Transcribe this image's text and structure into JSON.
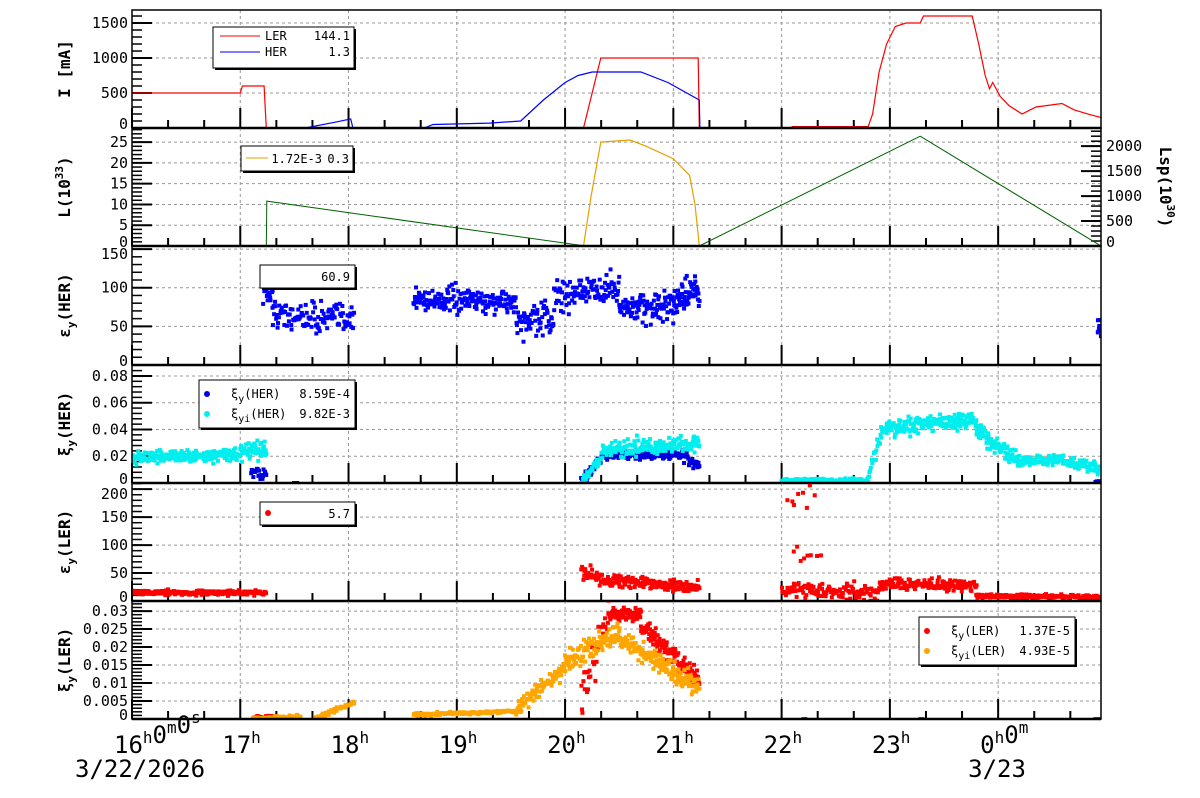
{
  "chart_data": [
    {
      "type": "line",
      "ylabel": "I [mA]",
      "ylabel_parts": [
        "I [mA]"
      ],
      "xunit": "hours since 16:00 3/22/2026",
      "ylim": [
        0,
        1686
      ],
      "yticks": [
        0,
        500,
        1000,
        1500
      ],
      "ytick_labels": [
        "0",
        "500",
        "1000",
        "1500"
      ],
      "series": [
        {
          "name": "LER",
          "color": "#ff0000",
          "legend_value": "144.1",
          "points": [
            [
              0,
              500
            ],
            [
              1.0,
              500
            ],
            [
              1.02,
              600
            ],
            [
              1.22,
              600
            ],
            [
              1.23,
              290
            ],
            [
              1.24,
              0
            ],
            [
              4.17,
              0
            ],
            [
              4.33,
              1000
            ],
            [
              5.23,
              1000
            ],
            [
              5.24,
              0
            ],
            [
              6.08,
              0
            ],
            [
              6.1,
              20
            ],
            [
              6.8,
              20
            ],
            [
              6.84,
              200
            ],
            [
              6.9,
              800
            ],
            [
              6.97,
              1200
            ],
            [
              7.05,
              1450
            ],
            [
              7.15,
              1500
            ],
            [
              7.28,
              1500
            ],
            [
              7.31,
              1600
            ],
            [
              7.76,
              1600
            ],
            [
              7.82,
              1200
            ],
            [
              7.88,
              750
            ],
            [
              7.92,
              560
            ],
            [
              7.95,
              650
            ],
            [
              8.02,
              450
            ],
            [
              8.1,
              320
            ],
            [
              8.22,
              200
            ],
            [
              8.35,
              300
            ],
            [
              8.59,
              350
            ],
            [
              8.7,
              260
            ],
            [
              8.85,
              190
            ],
            [
              8.95,
              150
            ]
          ]
        },
        {
          "name": "HER",
          "color": "#0000ff",
          "legend_value": "1.3",
          "points": [
            [
              0,
              0
            ],
            [
              1.6,
              0
            ],
            [
              1.9,
              90
            ],
            [
              2.02,
              130
            ],
            [
              2.04,
              0
            ],
            [
              2.7,
              0
            ],
            [
              2.78,
              50
            ],
            [
              3.3,
              70
            ],
            [
              3.59,
              100
            ],
            [
              3.8,
              400
            ],
            [
              4.0,
              650
            ],
            [
              4.12,
              750
            ],
            [
              4.25,
              800
            ],
            [
              4.7,
              800
            ],
            [
              4.95,
              650
            ],
            [
              5.24,
              400
            ],
            [
              5.245,
              0
            ],
            [
              8.95,
              0
            ]
          ]
        }
      ]
    },
    {
      "type": "line",
      "ylabel": "L(10^33)",
      "ylabel_parts": [
        "L(10",
        "33",
        ")"
      ],
      "ylabel_right_parts": [
        "Lsp(10",
        "30",
        ")"
      ],
      "ylim": [
        0,
        28.4
      ],
      "ylim_right": [
        0,
        2364
      ],
      "yticks": [
        0,
        5,
        10,
        15,
        20,
        25
      ],
      "ytick_labels": [
        "0",
        "5",
        "10",
        "15",
        "20",
        "25"
      ],
      "yticks_right": [
        0,
        500,
        1000,
        1500,
        2000
      ],
      "ytick_labels_right": [
        "0",
        "500",
        "1000",
        "1500",
        "2000"
      ],
      "legend_value": "1.72E-3",
      "legend_value_overlap": "0.3",
      "series": [
        {
          "name": "L",
          "axis": "left",
          "color": "#e6a000",
          "points": [
            [
              0,
              0
            ],
            [
              4.17,
              0
            ],
            [
              4.24,
              12
            ],
            [
              4.33,
              25
            ],
            [
              4.6,
              25.5
            ],
            [
              4.75,
              24
            ],
            [
              5.0,
              21
            ],
            [
              5.15,
              17
            ],
            [
              5.2,
              10
            ],
            [
              5.24,
              0
            ],
            [
              8.95,
              0
            ]
          ]
        },
        {
          "name": "Lsp",
          "axis": "right",
          "color": "#006400",
          "points": [
            [
              1.1,
              0
            ],
            [
              1.24,
              0
            ],
            [
              1.245,
              900
            ],
            [
              4.19,
              0
            ],
            [
              5.24,
              0
            ],
            [
              7.28,
              2200
            ],
            [
              8.95,
              0
            ]
          ]
        }
      ]
    },
    {
      "type": "scatter",
      "ylabel": "εy(HER)",
      "ylabel_parts": [
        "ε",
        "y",
        "(HER)"
      ],
      "ylim": [
        0,
        154
      ],
      "yticks": [
        0,
        50,
        100,
        150
      ],
      "ytick_labels": [
        "0",
        "50",
        "100",
        "150"
      ],
      "legend_value": "60.9",
      "series": [
        {
          "name": "εy(HER)",
          "color": "#0000ff",
          "segments": [
            [
              1.2,
              1.3,
              105,
              95,
              12,
              25
            ],
            [
              1.3,
              2.05,
              65,
              60,
              10,
              120
            ],
            [
              2.6,
              3.55,
              85,
              82,
              8,
              170
            ],
            [
              3.55,
              3.9,
              55,
              60,
              10,
              60
            ],
            [
              3.9,
              4.5,
              90,
              100,
              10,
              100
            ],
            [
              4.5,
              5.0,
              75,
              72,
              10,
              100
            ],
            [
              5.0,
              5.24,
              85,
              95,
              12,
              60
            ],
            [
              8.92,
              8.95,
              50,
              50,
              10,
              10
            ]
          ]
        }
      ]
    },
    {
      "type": "scatter",
      "ylabel": "ξy(HER)",
      "ylabel_parts": [
        "ξ",
        "y",
        "(HER)"
      ],
      "ylim": [
        0,
        0.0882
      ],
      "yticks": [
        0,
        0.02,
        0.04,
        0.06,
        0.08
      ],
      "ytick_labels": [
        "0",
        "0.02",
        "0.04",
        "0.06",
        "0.08"
      ],
      "series": [
        {
          "name": "ξy(HER)",
          "label_main": "ξ",
          "label_sub": "y",
          "label_rest": "(HER)",
          "legend_value": "8.59E-4",
          "color": "#0000dd",
          "segments": [
            [
              1.1,
              1.24,
              0.007,
              0.007,
              0.002,
              20
            ],
            [
              1.5,
              1.52,
              0,
              0,
              0,
              2
            ],
            [
              4.15,
              4.35,
              0.0,
              0.02,
              0.002,
              30
            ],
            [
              4.35,
              5.1,
              0.021,
              0.021,
              0.0015,
              150
            ],
            [
              5.1,
              5.24,
              0.02,
              0.012,
              0.002,
              30
            ],
            [
              8.9,
              8.95,
              0.001,
              0.001,
              0.0005,
              8
            ]
          ]
        },
        {
          "name": "ξyi(HER)",
          "label_main": "ξ",
          "label_sub": "yi",
          "label_rest": "(HER)",
          "legend_value": "9.82E-3",
          "color": "#00eeee",
          "segments": [
            [
              0,
              1.0,
              0.019,
              0.021,
              0.002,
              200
            ],
            [
              1.0,
              1.24,
              0.023,
              0.025,
              0.003,
              50
            ],
            [
              4.15,
              4.35,
              0.0,
              0.022,
              0.002,
              30
            ],
            [
              4.35,
              5.24,
              0.025,
              0.029,
              0.003,
              180
            ],
            [
              6.0,
              6.8,
              0.002,
              0.002,
              0.0007,
              100
            ],
            [
              6.8,
              6.92,
              0.005,
              0.038,
              0.003,
              20
            ],
            [
              6.92,
              7.8,
              0.04,
              0.048,
              0.003,
              180
            ],
            [
              7.8,
              8.2,
              0.04,
              0.015,
              0.003,
              80
            ],
            [
              8.2,
              8.6,
              0.016,
              0.018,
              0.002,
              80
            ],
            [
              8.6,
              8.95,
              0.016,
              0.01,
              0.002,
              70
            ]
          ]
        }
      ]
    },
    {
      "type": "scatter",
      "ylabel": "εy(LER)",
      "ylabel_parts": [
        "ε",
        "y",
        "(LER)"
      ],
      "ylim": [
        0,
        211
      ],
      "yticks": [
        0,
        50,
        100,
        150,
        200
      ],
      "ytick_labels": [
        "0",
        "50",
        "100",
        "150",
        "200"
      ],
      "legend_value": "5.7",
      "series": [
        {
          "name": "εy(LER)",
          "color": "#ff0000",
          "segments": [
            [
              0,
              1.24,
              15,
              15,
              2,
              200
            ],
            [
              4.15,
              4.25,
              55,
              50,
              8,
              20
            ],
            [
              4.25,
              5.24,
              40,
              25,
              5,
              180
            ],
            [
              6.0,
              6.9,
              18,
              15,
              8,
              120
            ],
            [
              6.9,
              7.8,
              30,
              28,
              5,
              160
            ],
            [
              7.8,
              8.95,
              9,
              7,
              2,
              200
            ],
            [
              6.05,
              6.3,
              180,
              190,
              8,
              8
            ],
            [
              6.1,
              6.35,
              75,
              80,
              8,
              8
            ]
          ]
        }
      ]
    },
    {
      "type": "scatter",
      "ylabel": "ξy(LER)",
      "ylabel_parts": [
        "ξ",
        "y",
        "(LER)"
      ],
      "ylim": [
        0,
        0.0328
      ],
      "yticks": [
        0,
        0.005,
        0.01,
        0.015,
        0.02,
        0.025,
        0.03
      ],
      "ytick_labels": [
        "0",
        "0.005",
        "0.01",
        "0.015",
        "0.02",
        "0.025",
        "0.03"
      ],
      "series": [
        {
          "name": "ξy(LER)",
          "label_main": "ξ",
          "label_sub": "y",
          "label_rest": "(LER)",
          "legend_value": "1.37E-5",
          "color": "#ff0000",
          "segments": [
            [
              1.12,
              1.3,
              0.0003,
              0.0007,
              0.0002,
              15
            ],
            [
              4.15,
              4.4,
              0.005,
              0.028,
              0.003,
              40
            ],
            [
              4.4,
              4.7,
              0.029,
              0.029,
              0.0008,
              80
            ],
            [
              4.7,
              5.24,
              0.026,
              0.011,
              0.0015,
              120
            ],
            [
              6.2,
              6.22,
              0,
              0,
              0,
              2
            ],
            [
              7.28,
              7.3,
              0,
              0,
              0,
              2
            ],
            [
              8.9,
              8.95,
              0,
              0,
              0,
              6
            ]
          ]
        },
        {
          "name": "ξyi(LER)",
          "label_main": "ξ",
          "label_sub": "yi",
          "label_rest": "(LER)",
          "legend_value": "4.93E-5",
          "color": "#ffa500",
          "segments": [
            [
              1.12,
              1.55,
              0.0002,
              0.0008,
              0.0002,
              30
            ],
            [
              1.7,
              2.05,
              0.0003,
              0.0045,
              0.0003,
              50
            ],
            [
              2.6,
              3.55,
              0.0012,
              0.0022,
              0.0002,
              120
            ],
            [
              3.55,
              4.0,
              0.003,
              0.014,
              0.0012,
              80
            ],
            [
              4.0,
              4.5,
              0.016,
              0.024,
              0.0015,
              100
            ],
            [
              4.5,
              5.24,
              0.022,
              0.009,
              0.0015,
              150
            ]
          ]
        }
      ]
    }
  ],
  "xaxis": {
    "xlim_hours": [
      0,
      8.95
    ],
    "ticks": [
      {
        "h": 0,
        "parts": [
          [
            "16",
            "h"
          ],
          [
            "0",
            "m"
          ],
          [
            "0",
            "s"
          ]
        ]
      },
      {
        "h": 1,
        "parts": [
          [
            "17",
            "h"
          ]
        ]
      },
      {
        "h": 2,
        "parts": [
          [
            "18",
            "h"
          ]
        ]
      },
      {
        "h": 3,
        "parts": [
          [
            "19",
            "h"
          ]
        ]
      },
      {
        "h": 4,
        "parts": [
          [
            "20",
            "h"
          ]
        ]
      },
      {
        "h": 5,
        "parts": [
          [
            "21",
            "h"
          ]
        ]
      },
      {
        "h": 6,
        "parts": [
          [
            "22",
            "h"
          ]
        ]
      },
      {
        "h": 7,
        "parts": [
          [
            "23",
            "h"
          ]
        ]
      },
      {
        "h": 8,
        "parts": [
          [
            "0",
            "h"
          ],
          [
            "0",
            "m"
          ]
        ]
      }
    ],
    "date_labels": [
      {
        "h": 0,
        "text": "3/22/2026"
      },
      {
        "h": 8,
        "text": "3/23"
      }
    ]
  }
}
